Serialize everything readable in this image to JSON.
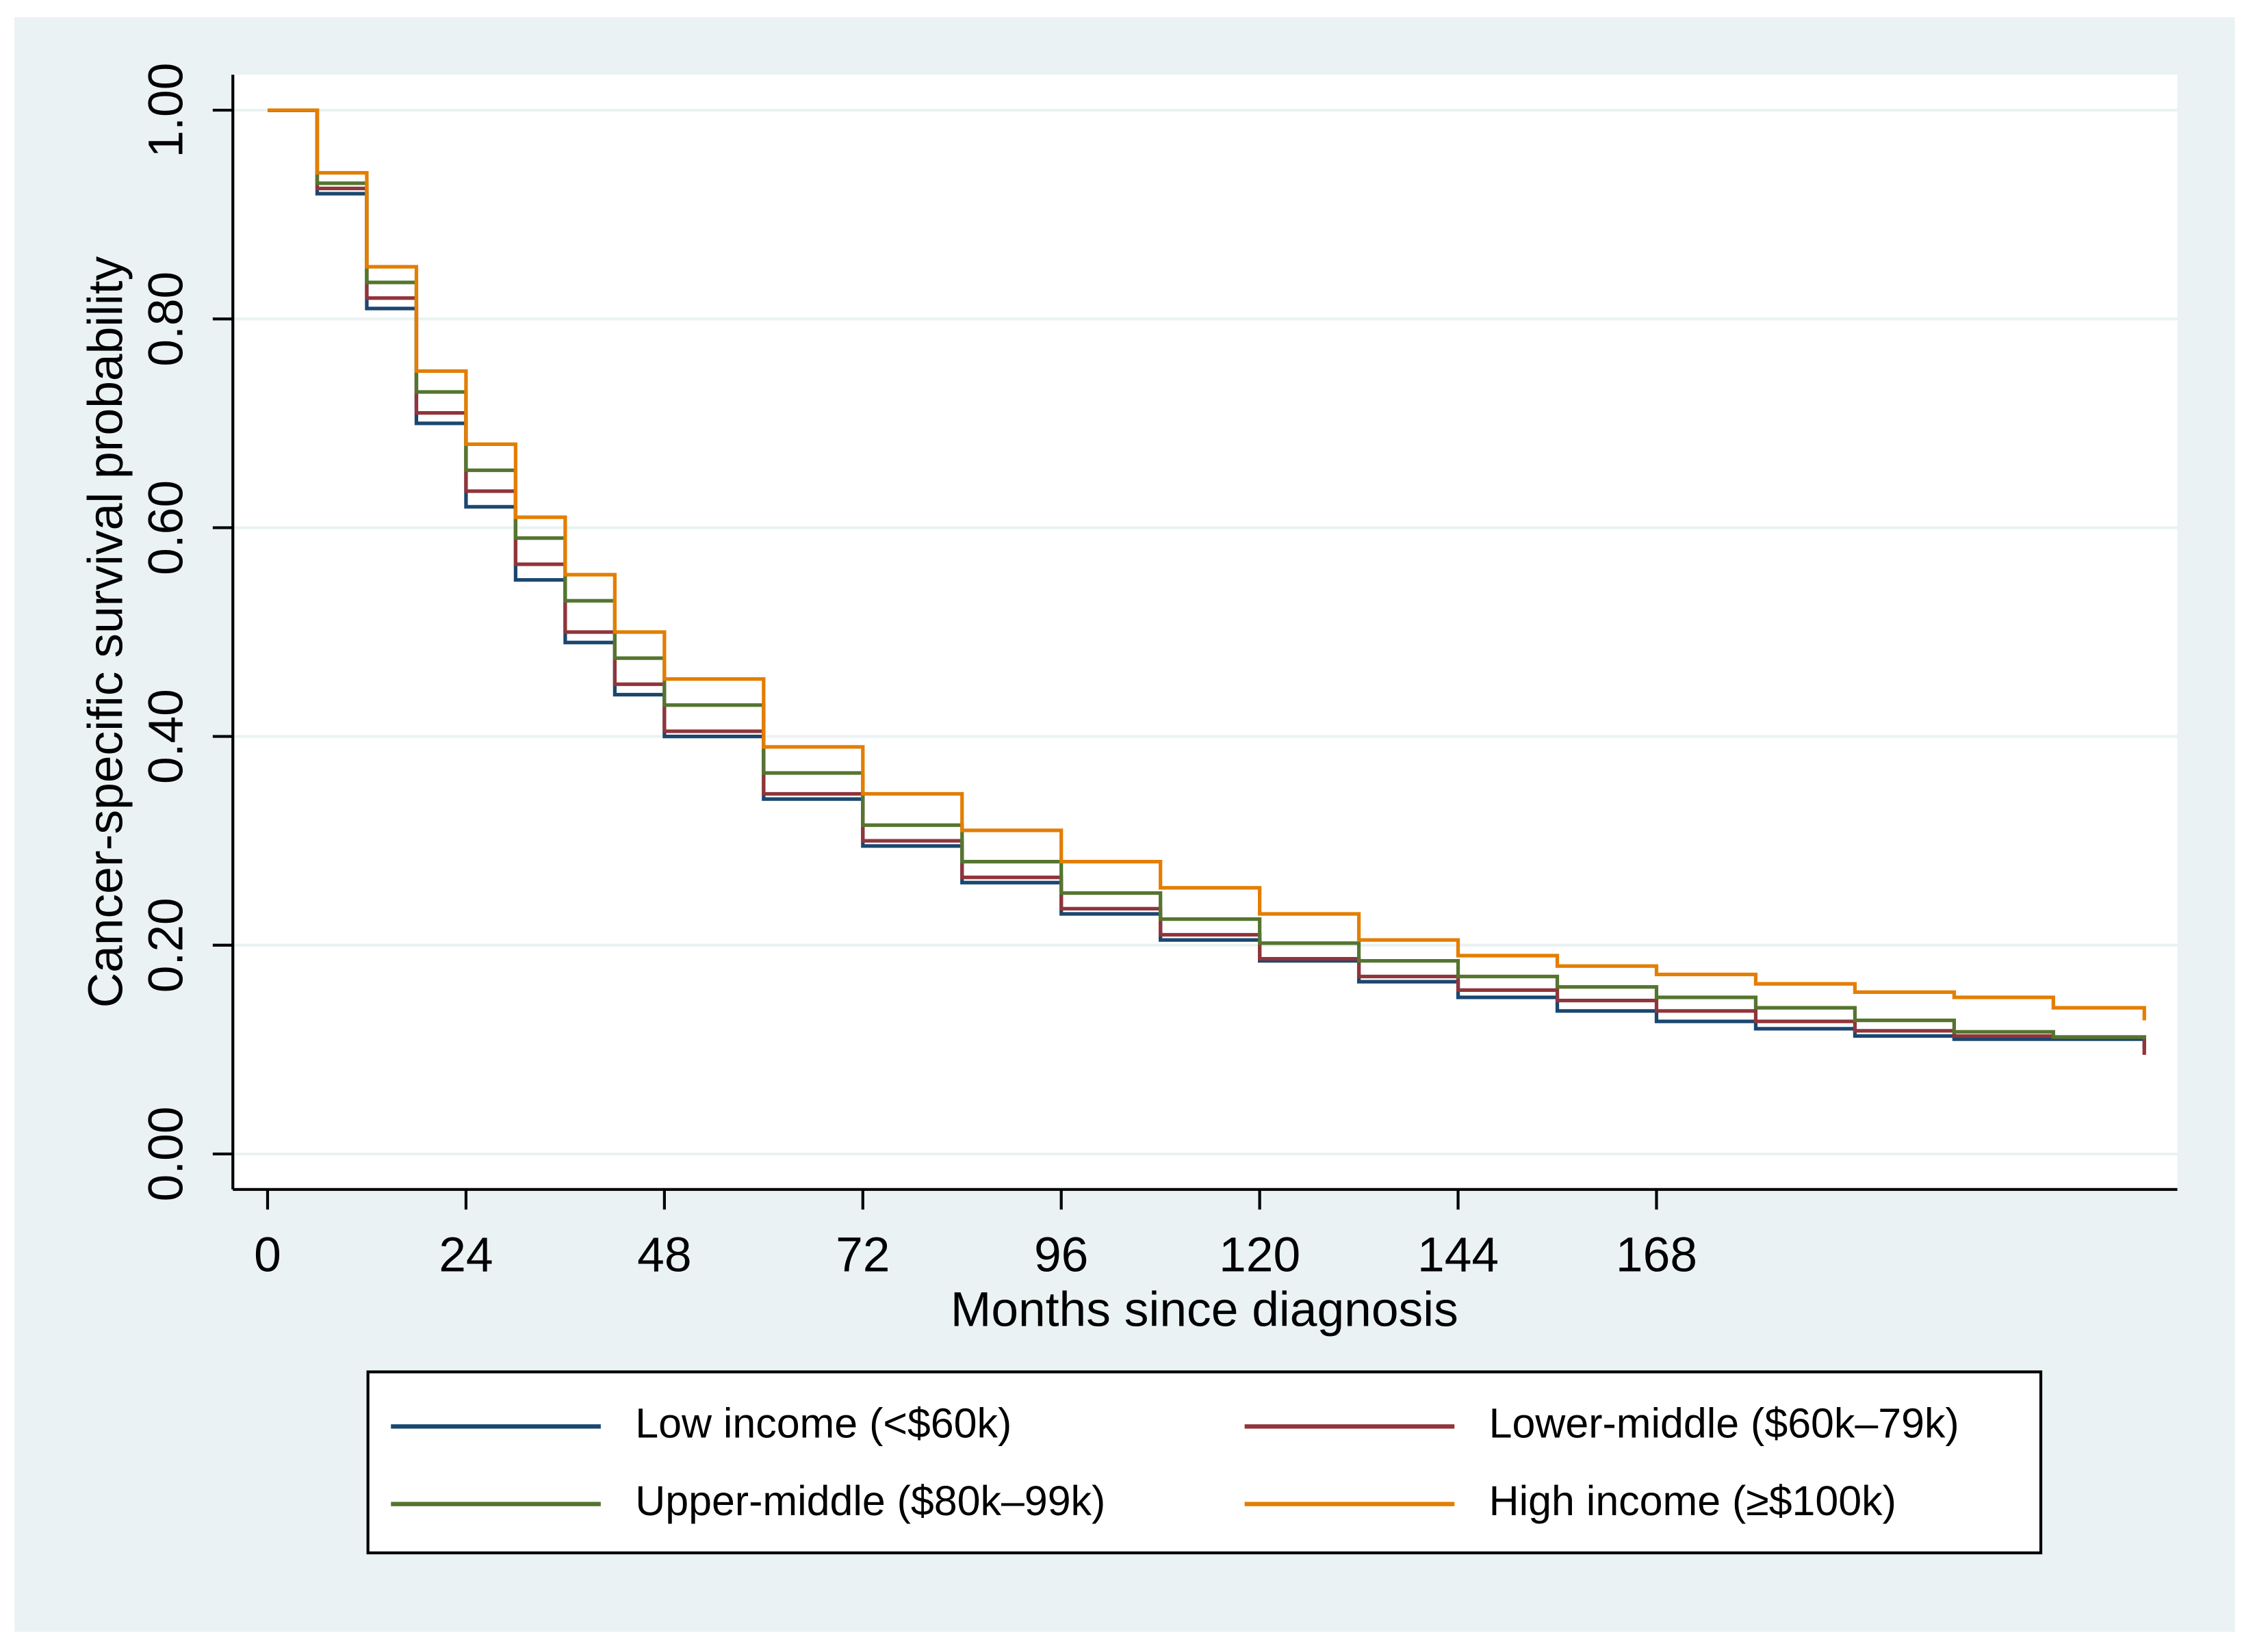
{
  "chart_data": {
    "type": "line",
    "drawstyle": "steps-post",
    "xlabel": "Months since diagnosis",
    "ylabel": "Cancer-specific survival probability",
    "x": [
      0,
      6,
      12,
      18,
      24,
      30,
      36,
      42,
      48,
      60,
      72,
      84,
      96,
      108,
      120,
      132,
      144,
      156,
      168,
      180,
      192,
      204,
      216,
      227
    ],
    "series": [
      {
        "name": "Low income (<$60k)",
        "color": "#1a476f",
        "values": [
          1.0,
          0.92,
          0.81,
          0.7,
          0.62,
          0.55,
          0.49,
          0.44,
          0.4,
          0.34,
          0.295,
          0.26,
          0.23,
          0.205,
          0.185,
          0.165,
          0.15,
          0.137,
          0.127,
          0.12,
          0.113,
          0.11,
          0.11,
          0.1
        ]
      },
      {
        "name": "Lower-middle ($60k–79k)",
        "color": "#90353b",
        "values": [
          1.0,
          0.925,
          0.82,
          0.71,
          0.635,
          0.565,
          0.5,
          0.45,
          0.405,
          0.345,
          0.3,
          0.265,
          0.235,
          0.21,
          0.187,
          0.17,
          0.157,
          0.147,
          0.137,
          0.127,
          0.118,
          0.113,
          0.112,
          0.095
        ]
      },
      {
        "name": "Upper-middle ($80k–99k)",
        "color": "#55752f",
        "values": [
          1.0,
          0.93,
          0.835,
          0.73,
          0.655,
          0.59,
          0.53,
          0.475,
          0.43,
          0.365,
          0.315,
          0.28,
          0.25,
          0.225,
          0.202,
          0.185,
          0.17,
          0.16,
          0.15,
          0.14,
          0.128,
          0.117,
          0.112,
          0.11
        ]
      },
      {
        "name": "High income (≥$100k)",
        "color": "#e37e00",
        "values": [
          1.0,
          0.94,
          0.85,
          0.75,
          0.68,
          0.61,
          0.555,
          0.5,
          0.455,
          0.39,
          0.345,
          0.31,
          0.28,
          0.255,
          0.23,
          0.205,
          0.19,
          0.18,
          0.172,
          0.163,
          0.155,
          0.15,
          0.14,
          0.128
        ]
      }
    ],
    "xlim": [
      -4.2,
      231
    ],
    "xticks": [
      0,
      24,
      48,
      72,
      96,
      120,
      144,
      168
    ],
    "ylim": [
      -0.034,
      1.034
    ],
    "yticks": [
      {
        "value": 0,
        "label": "0.00"
      },
      {
        "value": 0.2,
        "label": "0.20"
      },
      {
        "value": 0.4,
        "label": "0.40"
      },
      {
        "value": 0.6,
        "label": "0.60"
      },
      {
        "value": 0.8,
        "label": "0.80"
      },
      {
        "value": 1,
        "label": "1.00"
      }
    ],
    "grid": true,
    "legend": "bottom"
  }
}
